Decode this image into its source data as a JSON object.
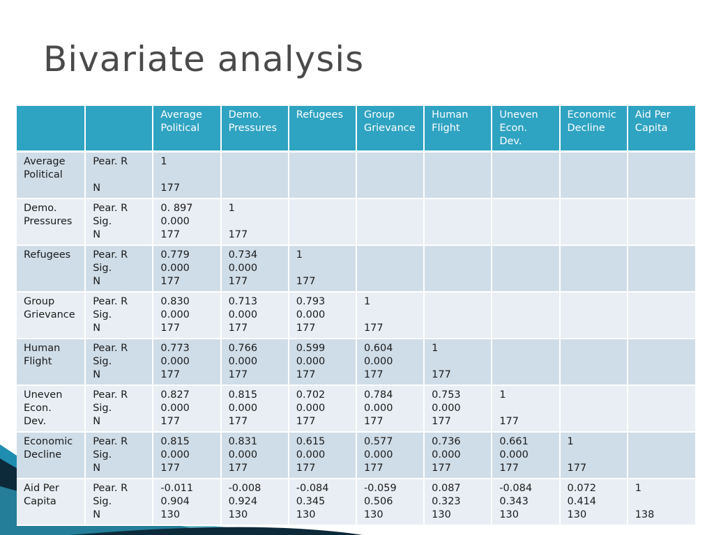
{
  "title": "Bivariate analysis",
  "header": [
    "",
    "",
    "Average\nPolitical",
    "Demo.\nPressures",
    "Refugees",
    "Group\nGrievance",
    "Human\nFlight",
    "Uneven\nEcon.\nDev.",
    "Economic\nDecline",
    "Aid Per\nCapita"
  ],
  "rows": [
    {
      "name": "Average\nPolitical",
      "stat": "Pear. R\n\nN",
      "cells": [
        "1\n\n177",
        "",
        "",
        "",
        "",
        "",
        "",
        ""
      ]
    },
    {
      "name": "Demo.\nPressures",
      "stat": "Pear. R\nSig.\nN",
      "cells": [
        "0. 897\n0.000\n177",
        "1\n\n177",
        "",
        "",
        "",
        "",
        "",
        ""
      ]
    },
    {
      "name": "Refugees",
      "stat": "Pear. R\nSig.\nN",
      "cells": [
        "0.779\n0.000\n177",
        "0.734\n0.000\n177",
        "1\n\n177",
        "",
        "",
        "",
        "",
        ""
      ]
    },
    {
      "name": "Group\nGrievance",
      "stat": "Pear. R\nSig.\nN",
      "cells": [
        "0.830\n0.000\n177",
        "0.713\n0.000\n177",
        "0.793\n0.000\n177",
        "1\n\n177",
        "",
        "",
        "",
        ""
      ]
    },
    {
      "name": "Human\nFlight",
      "stat": "Pear. R\nSig.\nN",
      "cells": [
        "0.773\n0.000\n177",
        "0.766\n0.000\n177",
        "0.599\n0.000\n177",
        "0.604\n0.000\n177",
        "1\n\n177",
        "",
        "",
        ""
      ]
    },
    {
      "name": "Uneven\nEcon.\nDev.",
      "stat": "Pear. R\nSig.\nN",
      "cells": [
        "0.827\n0.000\n177",
        "0.815\n0.000\n177",
        "0.702\n0.000\n177",
        "0.784\n0.000\n177",
        "0.753\n0.000\n177",
        "1\n\n177",
        "",
        ""
      ]
    },
    {
      "name": "Economic\nDecline",
      "stat": "Pear. R\nSig.\nN",
      "cells": [
        "0.815\n0.000\n177",
        "0.831\n0.000\n177",
        "0.615\n0.000\n177",
        "0.577\n0.000\n177",
        "0.736\n0.000\n177",
        "0.661\n0.000\n177",
        "1\n\n177",
        ""
      ]
    },
    {
      "name": "Aid Per\nCapita",
      "stat": "Pear. R\nSig.\nN",
      "cells": [
        "-0.011\n0.904\n130",
        "-0.008\n0.924\n130",
        "-0.084\n0.345\n130",
        "-0.059\n0.506\n130",
        "0.087\n0.323\n130",
        "-0.084\n0.343\n130",
        "0.072\n0.414\n130",
        "1\n\n138"
      ]
    }
  ],
  "colors": {
    "header_bg": "#2fa3c2",
    "row_dark": "#cfdde8",
    "row_light": "#e8eef4",
    "title": "#4a4a4a",
    "accent_dark": "#0d2a3a",
    "accent_teal": "#1f8db0"
  }
}
